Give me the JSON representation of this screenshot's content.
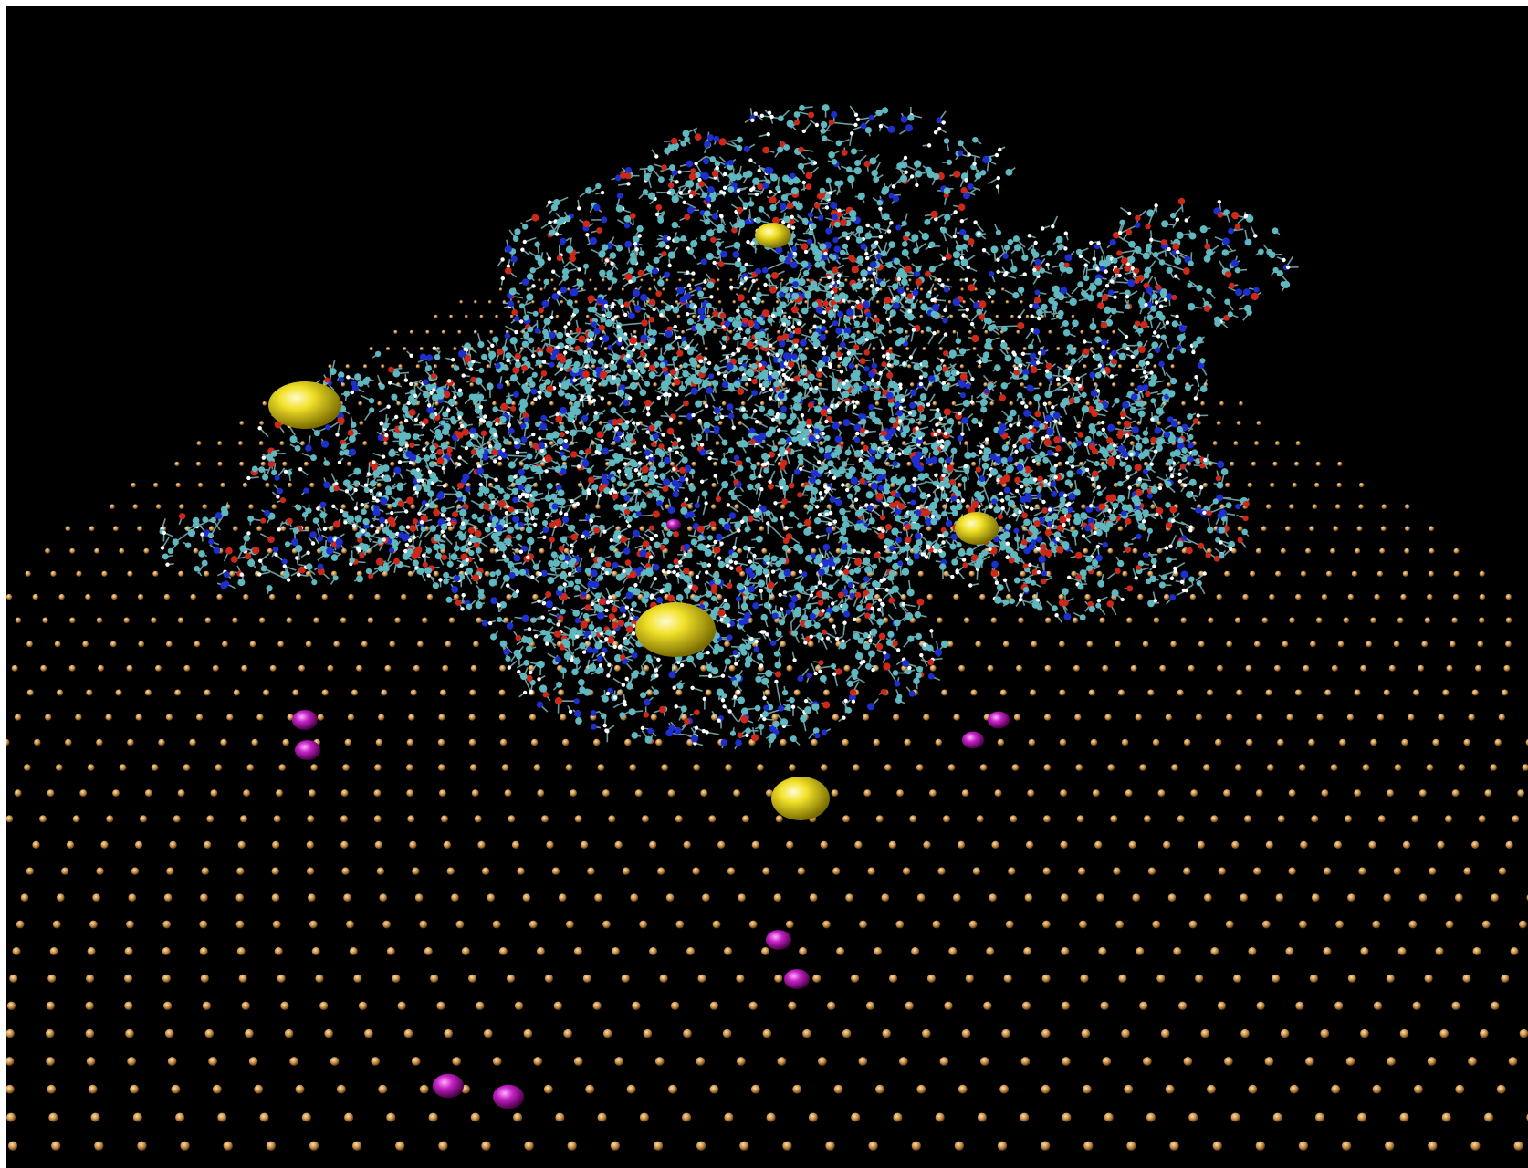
{
  "scene": {
    "background_color": "#000000",
    "frame_color": "#ffffff",
    "colors": {
      "surface_atom": "#c8904a",
      "carbon": "#5fb8c0",
      "hydrogen": "#ffffff",
      "nitrogen": "#1e2fd0",
      "oxygen": "#d02818",
      "bond": "#8fd0d6",
      "counterion_large": "#f0e020",
      "counterion_small": "#c020c0"
    },
    "elements": [
      {
        "name": "surface-atom-lattice",
        "kind": "gold-colored atom grid"
      },
      {
        "name": "dendrimer-molecule",
        "kind": "ball-and-stick macromolecule"
      },
      {
        "name": "counterion-large",
        "kind": "yellow spheres"
      },
      {
        "name": "counterion-small",
        "kind": "magenta spheres"
      }
    ]
  }
}
